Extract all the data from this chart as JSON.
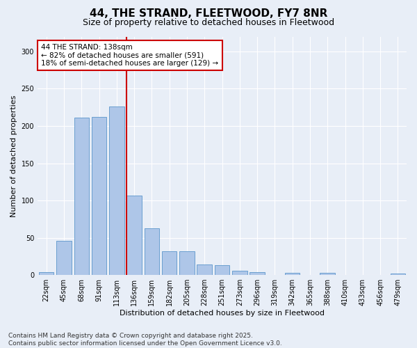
{
  "title": "44, THE STRAND, FLEETWOOD, FY7 8NR",
  "subtitle": "Size of property relative to detached houses in Fleetwood",
  "xlabel": "Distribution of detached houses by size in Fleetwood",
  "ylabel": "Number of detached properties",
  "bar_color": "#aec6e8",
  "bar_edge_color": "#6a9fd0",
  "background_color": "#e8eef7",
  "grid_color": "#ffffff",
  "categories": [
    "22sqm",
    "45sqm",
    "68sqm",
    "91sqm",
    "113sqm",
    "136sqm",
    "159sqm",
    "182sqm",
    "205sqm",
    "228sqm",
    "251sqm",
    "273sqm",
    "296sqm",
    "319sqm",
    "342sqm",
    "365sqm",
    "388sqm",
    "410sqm",
    "433sqm",
    "456sqm",
    "479sqm"
  ],
  "values": [
    4,
    46,
    211,
    212,
    226,
    107,
    63,
    32,
    32,
    14,
    13,
    6,
    4,
    0,
    3,
    0,
    3,
    0,
    0,
    0,
    2
  ],
  "red_line_index": 5,
  "annotation_line1": "44 THE STRAND: 138sqm",
  "annotation_line2": "← 82% of detached houses are smaller (591)",
  "annotation_line3": "18% of semi-detached houses are larger (129) →",
  "annotation_box_color": "#ffffff",
  "annotation_box_edge_color": "#cc0000",
  "red_line_color": "#cc0000",
  "ylim": [
    0,
    320
  ],
  "yticks": [
    0,
    50,
    100,
    150,
    200,
    250,
    300
  ],
  "footnote": "Contains HM Land Registry data © Crown copyright and database right 2025.\nContains public sector information licensed under the Open Government Licence v3.0.",
  "title_fontsize": 11,
  "subtitle_fontsize": 9,
  "axis_label_fontsize": 8,
  "tick_fontsize": 7,
  "annotation_fontsize": 7.5,
  "footnote_fontsize": 6.5
}
